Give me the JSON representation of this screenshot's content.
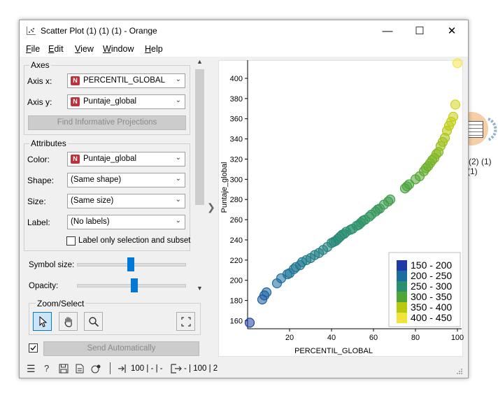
{
  "window": {
    "title": "Scatter Plot (1) (1) (1) - Orange",
    "controls": {
      "minimize": "—",
      "maximize": "☐",
      "close": "✕"
    }
  },
  "menu": [
    {
      "label_u": "F",
      "label_rest": "ile"
    },
    {
      "label_u": "E",
      "label_rest": "dit"
    },
    {
      "label_u": "V",
      "label_rest": "iew"
    },
    {
      "label_u": "W",
      "label_rest": "indow"
    },
    {
      "label_u": "H",
      "label_rest": "elp"
    }
  ],
  "axes_box": {
    "title": "Axes",
    "axis_x_label": "Axis x:",
    "axis_x_value": "PERCENTIL_GLOBAL",
    "axis_y_label": "Axis y:",
    "axis_y_value": "Puntaje_global",
    "find_button": "Find Informative Projections"
  },
  "attributes_box": {
    "title": "Attributes",
    "color_label": "Color:",
    "color_value": "Puntaje_global",
    "shape_label": "Shape:",
    "shape_value": "(Same shape)",
    "size_label": "Size:",
    "size_value": "(Same size)",
    "label_label": "Label:",
    "label_value": "(No labels)",
    "label_only_checkbox": "Label only selection and subset",
    "variable_type_badge": "N"
  },
  "sliders": {
    "symbol_size_label": "Symbol size:",
    "symbol_size_value": 0.5,
    "opacity_label": "Opacity:",
    "opacity_value": 0.53
  },
  "zoom_box": {
    "title": "Zoom/Select"
  },
  "send_button": "Send Automatically",
  "status": {
    "input_text": "100 | - | -",
    "output_text": "- | 100 | 2"
  },
  "background_widget": {
    "label_line1": "e (2) (1)",
    "label_line2": "(1)"
  },
  "colors": {
    "accent": "#0078d7",
    "badge": "#c0303a"
  },
  "chart_data": {
    "type": "scatter",
    "xlabel": "PERCENTIL_GLOBAL",
    "ylabel": "Puntaje_global",
    "xlim": [
      0,
      102
    ],
    "ylim": [
      152,
      418
    ],
    "x_ticks": [
      20,
      40,
      60,
      80,
      100
    ],
    "y_ticks": [
      160,
      180,
      200,
      220,
      240,
      260,
      280,
      300,
      320,
      340,
      360,
      380,
      400
    ],
    "legend_position": "bottom-right",
    "legend": [
      {
        "label": "150 - 200",
        "color": "#1f3aa6"
      },
      {
        "label": "200 - 250",
        "color": "#1b6d9e"
      },
      {
        "label": "250 - 300",
        "color": "#2a8f6f"
      },
      {
        "label": "300 - 350",
        "color": "#4fa636"
      },
      {
        "label": "350 - 400",
        "color": "#b9c90e"
      },
      {
        "label": "400 - 450",
        "color": "#f2e33c"
      }
    ],
    "points": [
      [
        1,
        158
      ],
      [
        7,
        181
      ],
      [
        8,
        185
      ],
      [
        9,
        188
      ],
      [
        14,
        197
      ],
      [
        16,
        202
      ],
      [
        19,
        206
      ],
      [
        20,
        207
      ],
      [
        22,
        211
      ],
      [
        23,
        213
      ],
      [
        25,
        215
      ],
      [
        26,
        218
      ],
      [
        28,
        220
      ],
      [
        30,
        222
      ],
      [
        32,
        225
      ],
      [
        34,
        227
      ],
      [
        36,
        230
      ],
      [
        38,
        233
      ],
      [
        40,
        237
      ],
      [
        41,
        238
      ],
      [
        42,
        239
      ],
      [
        43,
        241
      ],
      [
        44,
        243
      ],
      [
        45,
        245
      ],
      [
        46,
        246
      ],
      [
        47,
        248
      ],
      [
        49,
        250
      ],
      [
        50,
        251
      ],
      [
        52,
        254
      ],
      [
        53,
        255
      ],
      [
        54,
        257
      ],
      [
        55,
        259
      ],
      [
        56,
        260
      ],
      [
        58,
        263
      ],
      [
        59,
        265
      ],
      [
        61,
        268
      ],
      [
        62,
        270
      ],
      [
        63,
        271
      ],
      [
        65,
        275
      ],
      [
        67,
        278
      ],
      [
        68,
        280
      ],
      [
        75,
        291
      ],
      [
        76,
        293
      ],
      [
        77,
        295
      ],
      [
        80,
        300
      ],
      [
        82,
        303
      ],
      [
        84,
        308
      ],
      [
        85,
        311
      ],
      [
        86,
        313
      ],
      [
        87,
        316
      ],
      [
        88,
        319
      ],
      [
        89,
        321
      ],
      [
        90,
        325
      ],
      [
        91,
        327
      ],
      [
        92,
        333
      ],
      [
        93,
        337
      ],
      [
        94,
        341
      ],
      [
        95,
        348
      ],
      [
        96,
        353
      ],
      [
        97,
        357
      ],
      [
        98,
        362
      ],
      [
        99,
        374
      ],
      [
        100,
        415
      ]
    ]
  }
}
